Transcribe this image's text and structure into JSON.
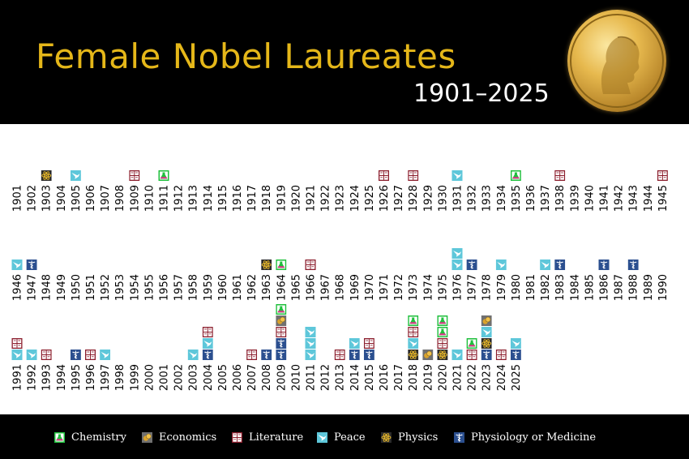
{
  "header": {
    "title": "Female Nobel Laureates",
    "subtitle": "1901–2025"
  },
  "chart_data": {
    "type": "table",
    "title": "Female Nobel Laureates",
    "subtitle": "1901–2025",
    "categories": [
      "Chemistry",
      "Economics",
      "Literature",
      "Peace",
      "Physics",
      "Physiology or Medicine"
    ],
    "colors": {
      "Chemistry": "#1fbf3c",
      "Economics": "#707070",
      "Literature": "#8b1d2c",
      "Peace": "#5ec7da",
      "Physics": "#2b2b2b",
      "Physiology or Medicine": "#2b4f8f"
    },
    "icons": {
      "Chemistry": "flask-icon",
      "Economics": "coins-icon",
      "Literature": "book-icon",
      "Peace": "dove-icon",
      "Physics": "atom-icon",
      "Physiology or Medicine": "caduceus-icon"
    },
    "rows": [
      {
        "years": [
          1901,
          1902,
          1903,
          1904,
          1905,
          1906,
          1907,
          1908,
          1909,
          1910,
          1911,
          1912,
          1913,
          1914,
          1915,
          1916,
          1917,
          1918,
          1919,
          1920,
          1921,
          1922,
          1923,
          1924,
          1925,
          1926,
          1927,
          1928,
          1929,
          1930,
          1931,
          1932,
          1933,
          1934,
          1935,
          1936,
          1937,
          1938,
          1939,
          1940,
          1941,
          1942,
          1943,
          1944,
          1945
        ]
      },
      {
        "years": [
          1946,
          1947,
          1948,
          1949,
          1950,
          1951,
          1952,
          1953,
          1954,
          1955,
          1956,
          1957,
          1958,
          1959,
          1960,
          1961,
          1962,
          1963,
          1964,
          1965,
          1966,
          1967,
          1968,
          1969,
          1970,
          1971,
          1972,
          1973,
          1974,
          1975,
          1976,
          1977,
          1978,
          1979,
          1980,
          1981,
          1982,
          1983,
          1984,
          1985,
          1986,
          1987,
          1988,
          1989,
          1990
        ]
      },
      {
        "years": [
          1991,
          1992,
          1993,
          1994,
          1995,
          1996,
          1997,
          1998,
          1999,
          2000,
          2001,
          2002,
          2003,
          2004,
          2005,
          2006,
          2007,
          2008,
          2009,
          2010,
          2011,
          2012,
          2013,
          2014,
          2015,
          2016,
          2017,
          2018,
          2019,
          2020,
          2021,
          2022,
          2023,
          2024,
          2025
        ]
      }
    ],
    "laureates": {
      "1903": [
        "Physics"
      ],
      "1905": [
        "Peace"
      ],
      "1909": [
        "Literature"
      ],
      "1911": [
        "Chemistry"
      ],
      "1926": [
        "Literature"
      ],
      "1928": [
        "Literature"
      ],
      "1931": [
        "Peace"
      ],
      "1935": [
        "Chemistry"
      ],
      "1938": [
        "Literature"
      ],
      "1945": [
        "Literature"
      ],
      "1946": [
        "Peace"
      ],
      "1947": [
        "Physiology or Medicine"
      ],
      "1963": [
        "Physics"
      ],
      "1964": [
        "Chemistry"
      ],
      "1966": [
        "Literature"
      ],
      "1976": [
        "Peace",
        "Peace"
      ],
      "1977": [
        "Physiology or Medicine"
      ],
      "1979": [
        "Peace"
      ],
      "1982": [
        "Peace"
      ],
      "1983": [
        "Physiology or Medicine"
      ],
      "1986": [
        "Physiology or Medicine"
      ],
      "1988": [
        "Physiology or Medicine"
      ],
      "1991": [
        "Peace",
        "Literature"
      ],
      "1992": [
        "Peace"
      ],
      "1993": [
        "Literature"
      ],
      "1995": [
        "Physiology or Medicine"
      ],
      "1996": [
        "Literature"
      ],
      "1997": [
        "Peace"
      ],
      "2003": [
        "Peace"
      ],
      "2004": [
        "Physiology or Medicine",
        "Peace",
        "Literature"
      ],
      "2007": [
        "Literature"
      ],
      "2008": [
        "Physiology or Medicine"
      ],
      "2009": [
        "Physiology or Medicine",
        "Physiology or Medicine",
        "Literature",
        "Economics",
        "Chemistry"
      ],
      "2011": [
        "Peace",
        "Peace",
        "Peace"
      ],
      "2013": [
        "Literature"
      ],
      "2014": [
        "Physiology or Medicine",
        "Peace"
      ],
      "2015": [
        "Physiology or Medicine",
        "Literature"
      ],
      "2018": [
        "Physics",
        "Peace",
        "Literature",
        "Chemistry"
      ],
      "2019": [
        "Economics"
      ],
      "2020": [
        "Physics",
        "Literature",
        "Chemistry",
        "Chemistry"
      ],
      "2021": [
        "Peace"
      ],
      "2022": [
        "Literature",
        "Chemistry"
      ],
      "2023": [
        "Physiology or Medicine",
        "Physics",
        "Peace",
        "Economics"
      ],
      "2024": [
        "Literature"
      ],
      "2025": [
        "Physiology or Medicine",
        "Peace"
      ]
    }
  },
  "legend": {
    "items": [
      {
        "label": "Chemistry",
        "icon": "flask-icon"
      },
      {
        "label": "Economics",
        "icon": "coins-icon"
      },
      {
        "label": "Literature",
        "icon": "book-icon"
      },
      {
        "label": "Peace",
        "icon": "dove-icon"
      },
      {
        "label": "Physics",
        "icon": "atom-icon"
      },
      {
        "label": "Physiology or Medicine",
        "icon": "caduceus-icon"
      }
    ]
  }
}
